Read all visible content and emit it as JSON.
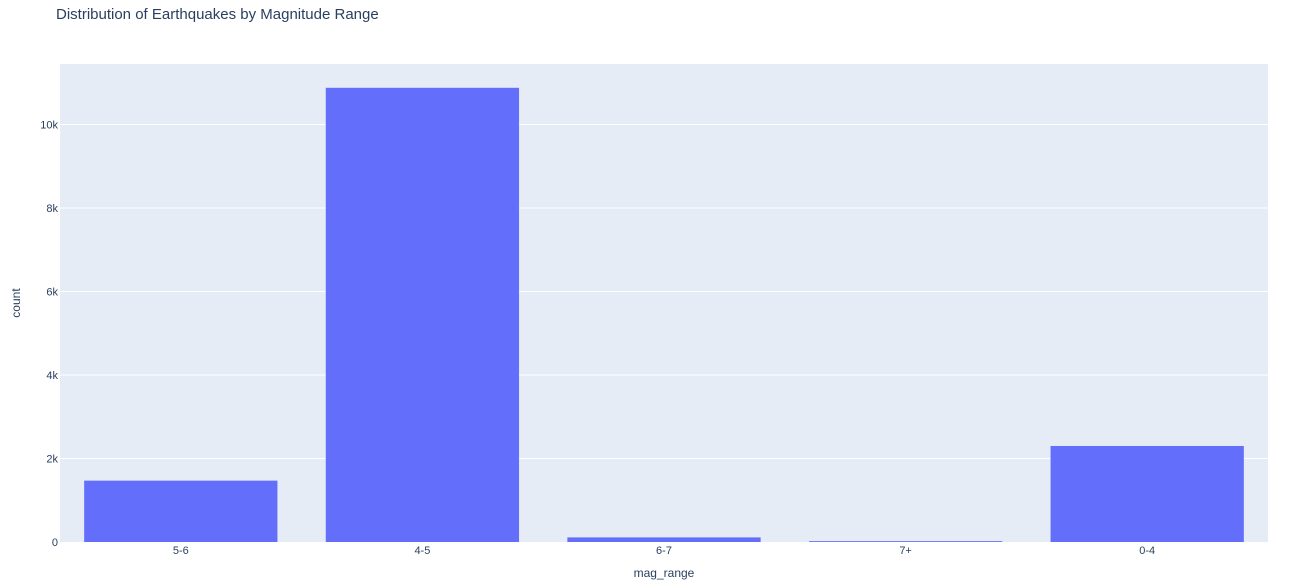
{
  "chart_data": {
    "type": "bar",
    "title": "Distribution of Earthquakes by Magnitude Range",
    "xlabel": "mag_range",
    "ylabel": "count",
    "categories": [
      "5-6",
      "4-5",
      "6-7",
      "7+",
      "0-4"
    ],
    "values": [
      1470,
      10880,
      110,
      20,
      2300
    ],
    "ylim": [
      0,
      11450
    ],
    "yticks": [
      0,
      2000,
      4000,
      6000,
      8000,
      10000
    ],
    "ytick_labels": [
      "0",
      "2k",
      "4k",
      "6k",
      "8k",
      "10k"
    ],
    "grid": true,
    "legend": "none"
  },
  "colors": {
    "bar": "#636efa",
    "plot_background": "#e5ecf6",
    "gridline": "#ffffff",
    "text": "#2a3f5f"
  }
}
